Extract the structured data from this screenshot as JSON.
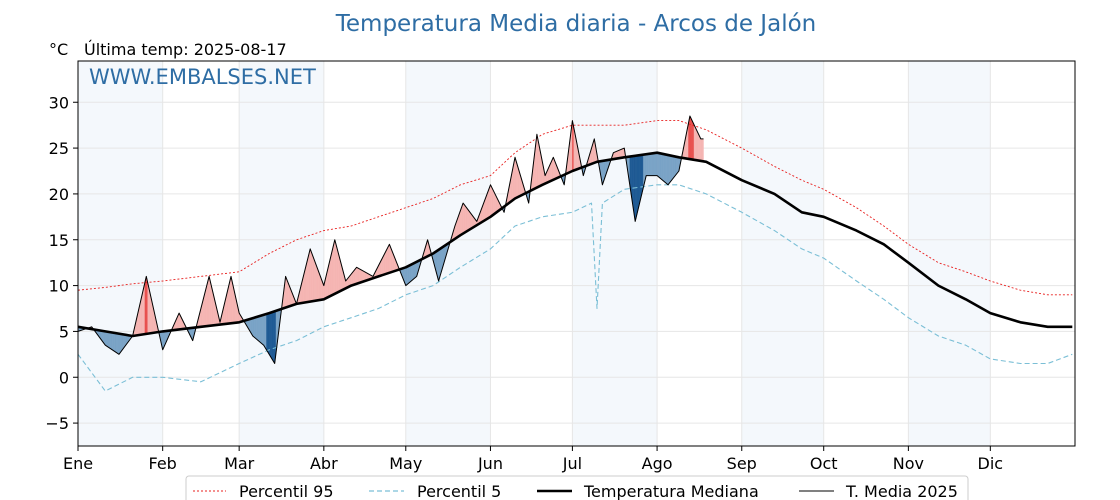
{
  "chart_data": {
    "type": "line",
    "title": "Temperatura Media diaria - Arcos de Jalón",
    "y_unit": "°C",
    "last_temp_label": "Última temp: 2025-08-17",
    "watermark": "WWW.EMBALSES.NET",
    "x_tick_labels": [
      "Ene",
      "Feb",
      "Mar",
      "Abr",
      "May",
      "Jun",
      "Jul",
      "Ago",
      "Sep",
      "Oct",
      "Nov",
      "Dic"
    ],
    "month_start_days": [
      0,
      31,
      59,
      90,
      120,
      151,
      181,
      212,
      243,
      273,
      304,
      334
    ],
    "ylim": [
      -7.5,
      34.5
    ],
    "y_ticks": [
      -5,
      0,
      5,
      10,
      15,
      20,
      25,
      30
    ],
    "grid": true,
    "legend_position": "bottom",
    "series": [
      {
        "name": "Percentil 95",
        "style": "dotted",
        "color": "#e8201f",
        "x": [
          0,
          10,
          20,
          31,
          45,
          59,
          70,
          80,
          90,
          100,
          110,
          120,
          130,
          140,
          151,
          160,
          170,
          181,
          190,
          200,
          212,
          220,
          230,
          243,
          255,
          265,
          273,
          285,
          295,
          304,
          315,
          325,
          334,
          345,
          355,
          364
        ],
        "y": [
          9.5,
          9.8,
          10.2,
          10.5,
          11,
          11.5,
          13.5,
          15,
          16,
          16.5,
          17.5,
          18.5,
          19.5,
          21,
          22,
          24.5,
          26.5,
          27.5,
          27.5,
          27.5,
          28,
          28,
          27,
          25,
          23,
          21.5,
          20.5,
          18.5,
          16.5,
          14.5,
          12.5,
          11.5,
          10.5,
          9.5,
          9,
          9
        ]
      },
      {
        "name": "Percentil 5",
        "style": "dashed",
        "color": "#7bbfd6",
        "x": [
          0,
          10,
          20,
          31,
          45,
          59,
          70,
          80,
          90,
          100,
          110,
          120,
          130,
          140,
          151,
          160,
          170,
          181,
          188,
          190,
          192,
          200,
          212,
          220,
          230,
          243,
          255,
          265,
          273,
          285,
          295,
          304,
          315,
          325,
          334,
          345,
          355,
          364
        ],
        "y": [
          2.5,
          -1.5,
          0,
          0,
          -0.5,
          1.5,
          3,
          4,
          5.5,
          6.5,
          7.5,
          9,
          10,
          12,
          14,
          16.5,
          17.5,
          18,
          19,
          7.5,
          19,
          20.5,
          21,
          21,
          20,
          18,
          16,
          14,
          13,
          10.5,
          8.5,
          6.5,
          4.5,
          3.5,
          2,
          1.5,
          1.5,
          2.5
        ]
      },
      {
        "name": "Temperatura Mediana",
        "style": "solid-thick",
        "color": "#000000",
        "x": [
          0,
          10,
          20,
          31,
          45,
          59,
          70,
          80,
          90,
          100,
          110,
          120,
          130,
          140,
          151,
          160,
          170,
          181,
          190,
          200,
          212,
          220,
          230,
          243,
          255,
          265,
          273,
          285,
          295,
          304,
          315,
          325,
          334,
          345,
          355,
          364
        ],
        "y": [
          5.5,
          5,
          4.5,
          5,
          5.5,
          6,
          7,
          8,
          8.5,
          10,
          11,
          12,
          13.5,
          15.5,
          17.5,
          19.5,
          21,
          22.5,
          23.5,
          24,
          24.5,
          24,
          23.5,
          21.5,
          20,
          18,
          17.5,
          16,
          14.5,
          12.5,
          10,
          8.5,
          7,
          6,
          5.5,
          5.5
        ]
      },
      {
        "name": "T. Media 2025",
        "style": "solid-thin",
        "color": "#000000",
        "x": [
          0,
          5,
          10,
          15,
          20,
          25,
          31,
          37,
          42,
          48,
          52,
          56,
          59,
          64,
          68,
          72,
          76,
          80,
          85,
          90,
          94,
          98,
          102,
          108,
          114,
          120,
          124,
          128,
          132,
          138,
          141,
          146,
          151,
          156,
          160,
          165,
          168,
          171,
          174,
          178,
          181,
          185,
          189,
          192,
          196,
          200,
          204,
          208,
          212,
          216,
          220,
          224,
          228,
          229
        ],
        "y": [
          5,
          5.5,
          3.5,
          2.5,
          4.5,
          11,
          3,
          7,
          4,
          11,
          6,
          11,
          7,
          4.5,
          3.5,
          1.5,
          11,
          8,
          14,
          10,
          15,
          10.5,
          12,
          11,
          14.5,
          10,
          11,
          15,
          10.5,
          16.5,
          19,
          17,
          21,
          18,
          24,
          19,
          26.5,
          22,
          24,
          21,
          28,
          22,
          26,
          21,
          24.5,
          25,
          17,
          22,
          22,
          21,
          22.5,
          28.5,
          26,
          26
        ]
      }
    ]
  }
}
